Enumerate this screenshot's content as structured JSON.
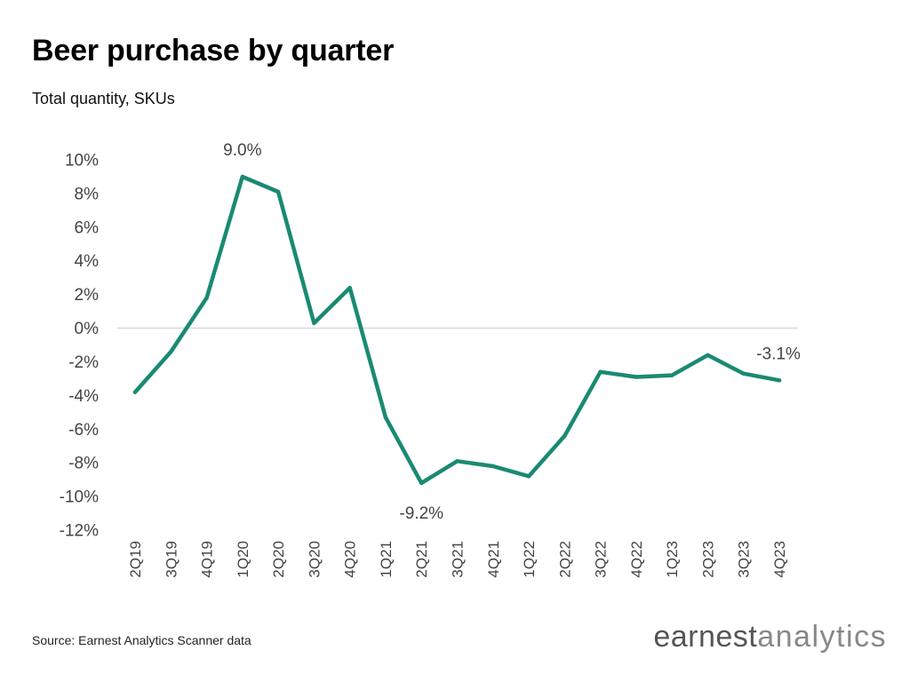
{
  "title": "Beer purchase by quarter",
  "subtitle": "Total quantity, SKUs",
  "source": "Source: Earnest Analytics Scanner data",
  "logo": {
    "part1": "earnest",
    "part2": "analytics"
  },
  "colors": {
    "line": "#1a8a72",
    "axis_text": "#444444",
    "zero_line": "#d8d8d8"
  },
  "chart_data": {
    "type": "line",
    "categories": [
      "2Q19",
      "3Q19",
      "4Q19",
      "1Q20",
      "2Q20",
      "3Q20",
      "4Q20",
      "1Q21",
      "2Q21",
      "3Q21",
      "4Q21",
      "1Q22",
      "2Q22",
      "3Q22",
      "4Q22",
      "1Q23",
      "2Q23",
      "3Q23",
      "4Q23"
    ],
    "values": [
      -3.8,
      -1.4,
      1.8,
      9.0,
      8.1,
      0.3,
      2.4,
      -5.3,
      -9.2,
      -7.9,
      -8.2,
      -8.8,
      -6.4,
      -2.6,
      -2.9,
      -2.8,
      -1.6,
      -2.7,
      -3.1
    ],
    "ylim": [
      -12,
      10
    ],
    "yticks": [
      10,
      8,
      6,
      4,
      2,
      0,
      -2,
      -4,
      -6,
      -8,
      -10,
      -12
    ],
    "ytick_labels": [
      "10%",
      "8%",
      "6%",
      "4%",
      "2%",
      "0%",
      "-2%",
      "-4%",
      "-6%",
      "-8%",
      "-10%",
      "-12%"
    ],
    "annotations": [
      {
        "category": "1Q20",
        "text": "9.0%",
        "position": "above"
      },
      {
        "category": "2Q21",
        "text": "-9.2%",
        "position": "below"
      },
      {
        "category": "4Q23",
        "text": "-3.1%",
        "position": "above"
      }
    ],
    "grid": false,
    "zero_line": true
  }
}
